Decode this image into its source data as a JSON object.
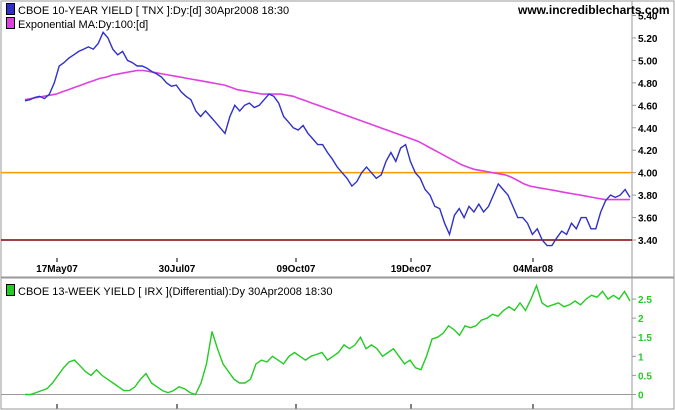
{
  "watermark": "www.incrediblecharts.com",
  "upper_panel": {
    "legend_price": "CBOE 10-YEAR YIELD [ TNX ]:Dy:[d]  30Apr2008 18:30",
    "legend_ma": "Exponential MA:Dy:100:[d]",
    "price_color": "#3030c8",
    "ma_color": "#e040e0"
  },
  "lower_panel": {
    "legend": "CBOE 13-WEEK YIELD [ IRX ](Differential):Dy  30Apr2008 18:30",
    "color": "#22cc22"
  },
  "chart_data": [
    {
      "type": "line",
      "x_tick_labels": [
        "17May07",
        "30Jul07",
        "09Oct07",
        "19Dec07",
        "04Mar08"
      ],
      "y_ticks": [
        "3.40",
        "3.60",
        "3.80",
        "4.00",
        "4.20",
        "4.40",
        "4.60",
        "4.80",
        "5.00",
        "5.20",
        "5.40"
      ],
      "ylim": [
        3.24,
        5.52
      ],
      "horizontal_lines": [
        {
          "value": 4.0,
          "color": "#ff9900"
        },
        {
          "value": 3.4,
          "color": "#800000"
        }
      ],
      "series": [
        {
          "values": [
            4.64,
            4.65,
            4.67,
            4.68,
            4.66,
            4.7,
            4.8,
            4.95,
            4.98,
            5.02,
            5.05,
            5.08,
            5.1,
            5.12,
            5.1,
            5.15,
            5.25,
            5.2,
            5.1,
            5.05,
            5.08,
            5.0,
            4.98,
            4.95,
            4.95,
            4.93,
            4.9,
            4.88,
            4.85,
            4.8,
            4.77,
            4.78,
            4.72,
            4.68,
            4.65,
            4.55,
            4.5,
            4.55,
            4.5,
            4.45,
            4.4,
            4.35,
            4.5,
            4.6,
            4.55,
            4.6,
            4.62,
            4.58,
            4.6,
            4.65,
            4.7,
            4.68,
            4.62,
            4.5,
            4.45,
            4.4,
            4.38,
            4.42,
            4.35,
            4.3,
            4.25,
            4.25,
            4.18,
            4.12,
            4.05,
            4.0,
            3.95,
            3.88,
            3.92,
            4.0,
            4.05,
            4.0,
            3.95,
            3.98,
            4.1,
            4.18,
            4.1,
            4.22,
            4.25,
            4.1,
            4.0,
            3.95,
            3.85,
            3.8,
            3.7,
            3.68,
            3.55,
            3.45,
            3.62,
            3.68,
            3.6,
            3.7,
            3.65,
            3.72,
            3.65,
            3.7,
            3.8,
            3.9,
            3.85,
            3.8,
            3.7,
            3.6,
            3.6,
            3.55,
            3.45,
            3.5,
            3.4,
            3.35,
            3.35,
            3.42,
            3.48,
            3.45,
            3.55,
            3.5,
            3.6,
            3.6,
            3.5,
            3.5,
            3.65,
            3.75,
            3.8,
            3.78,
            3.8,
            3.85,
            3.78
          ]
        },
        {
          "values": [
            4.65,
            4.66,
            4.67,
            4.68,
            4.69,
            4.7,
            4.72,
            4.74,
            4.76,
            4.78,
            4.8,
            4.82,
            4.84,
            4.85,
            4.87,
            4.88,
            4.89,
            4.9,
            4.91,
            4.91,
            4.9,
            4.89,
            4.88,
            4.87,
            4.86,
            4.85,
            4.84,
            4.83,
            4.82,
            4.81,
            4.8,
            4.79,
            4.78,
            4.76,
            4.74,
            4.73,
            4.72,
            4.71,
            4.7,
            4.7,
            4.7,
            4.7,
            4.69,
            4.68,
            4.66,
            4.64,
            4.62,
            4.6,
            4.58,
            4.56,
            4.54,
            4.52,
            4.5,
            4.48,
            4.46,
            4.44,
            4.42,
            4.4,
            4.38,
            4.36,
            4.34,
            4.32,
            4.3,
            4.28,
            4.25,
            4.22,
            4.19,
            4.16,
            4.13,
            4.1,
            4.07,
            4.05,
            4.03,
            4.02,
            4.01,
            4.0,
            3.99,
            3.98,
            3.96,
            3.93,
            3.9,
            3.88,
            3.87,
            3.86,
            3.85,
            3.84,
            3.83,
            3.82,
            3.81,
            3.8,
            3.79,
            3.78,
            3.77,
            3.76,
            3.76,
            3.76,
            3.76,
            3.76
          ]
        }
      ]
    },
    {
      "type": "line",
      "y_ticks": [
        "0",
        "0.5",
        "1",
        "1.5",
        "2",
        "2.5"
      ],
      "ylim": [
        -0.25,
        3.0
      ],
      "series": [
        {
          "values": [
            0.0,
            0.0,
            0.05,
            0.1,
            0.15,
            0.3,
            0.5,
            0.7,
            0.85,
            0.9,
            0.75,
            0.6,
            0.5,
            0.65,
            0.5,
            0.4,
            0.3,
            0.2,
            0.1,
            0.1,
            0.2,
            0.4,
            0.55,
            0.3,
            0.2,
            0.1,
            0.05,
            0.1,
            0.2,
            0.15,
            0.05,
            0.0,
            0.3,
            0.8,
            1.65,
            1.2,
            0.8,
            0.6,
            0.4,
            0.3,
            0.3,
            0.4,
            0.8,
            0.9,
            0.85,
            1.0,
            0.9,
            0.8,
            1.0,
            1.1,
            1.0,
            0.9,
            1.0,
            1.05,
            1.1,
            0.9,
            1.0,
            1.1,
            1.3,
            1.2,
            1.3,
            1.5,
            1.2,
            1.3,
            1.2,
            1.0,
            1.1,
            1.2,
            1.0,
            0.8,
            0.9,
            0.7,
            0.65,
            1.0,
            1.45,
            1.5,
            1.6,
            1.8,
            1.7,
            1.55,
            1.8,
            1.75,
            1.8,
            1.95,
            2.0,
            2.1,
            2.05,
            2.2,
            2.3,
            2.2,
            2.4,
            2.2,
            2.5,
            2.85,
            2.4,
            2.3,
            2.35,
            2.4,
            2.3,
            2.35,
            2.45,
            2.35,
            2.5,
            2.6,
            2.55,
            2.7,
            2.5,
            2.6,
            2.5,
            2.7,
            2.45
          ]
        }
      ]
    }
  ]
}
